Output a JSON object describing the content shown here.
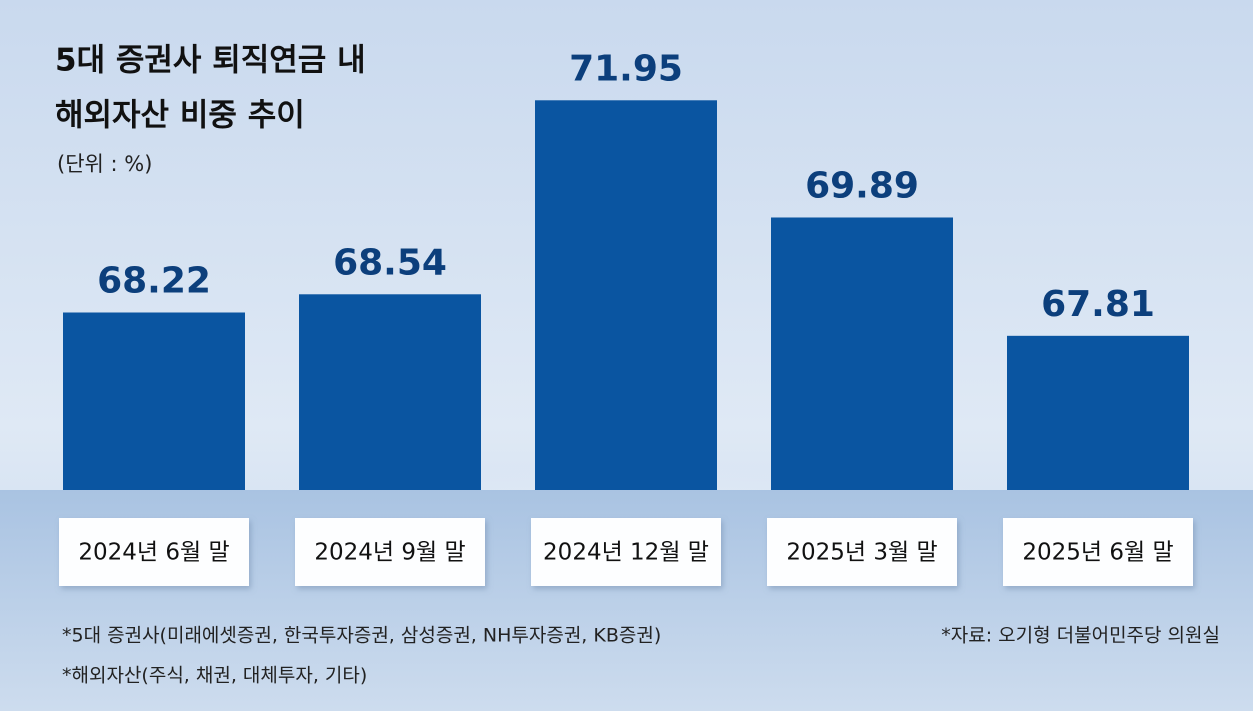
{
  "chart_data": {
    "type": "bar",
    "title": [
      "5대 증권사 퇴직연금 내",
      "해외자산 비중 추이"
    ],
    "subtitle": "(단위 : %)",
    "categories": [
      "2024년 6월 말",
      "2024년 9월 말",
      "2024년 12월 말",
      "2025년 3월 말",
      "2025년 6월 말"
    ],
    "values": [
      68.22,
      68.54,
      71.95,
      69.89,
      67.81
    ],
    "color": "#0a55a1",
    "ylim": [
      65.1,
      72.5
    ],
    "notes": [
      "*5대 증권사(미래에셋증권, 한국투자증권, 삼성증권, NH투자증권, KB증권)",
      "*해외자산(주식, 채권, 대체투자, 기타)"
    ],
    "source": "*자료: 오기형 더불어민주당 의원실"
  }
}
